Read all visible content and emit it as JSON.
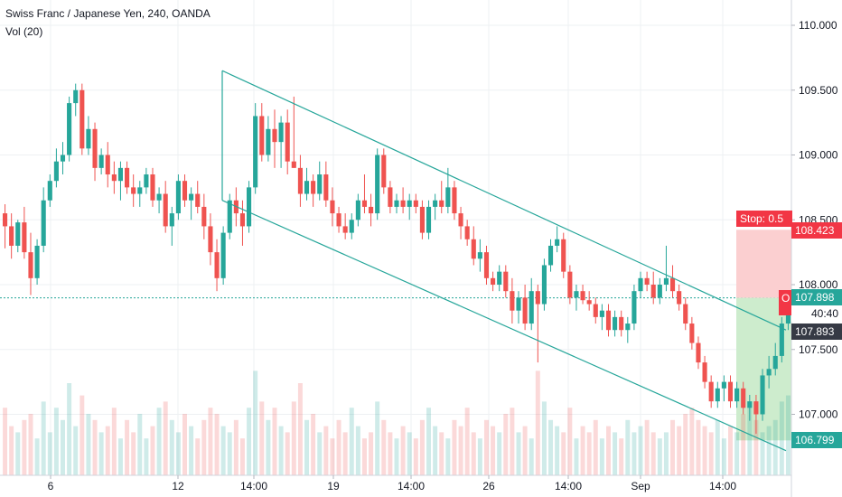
{
  "header": {
    "title": "Swiss Franc / Japanese Yen, 240, OANDA",
    "volume_label": "Vol (20)"
  },
  "price_tags": {
    "stop_label": "Stop: 0.5",
    "stop_price": "108.423",
    "current_price": "107.898",
    "countdown": "40:40",
    "prev_price": "107.893",
    "target_price": "106.799",
    "partial_label": "O"
  },
  "colors": {
    "up": "#26a69a",
    "down": "#ef5350",
    "channel": "#26a69a",
    "price_line": "#26a69a",
    "stop_zone": "#fbcfd0",
    "target_zone": "#cdeccd",
    "stop_tag": "#f23645",
    "target_tag": "#26a69a",
    "axis_text": "#131722"
  },
  "chart_data": {
    "type": "candlestick",
    "symbol": "CHFJPY",
    "ylim": [
      106.6,
      110.25
    ],
    "y_ticks": [
      "110.000",
      "109.500",
      "109.000",
      "108.500",
      "108.000",
      "107.500",
      "107.000"
    ],
    "y_tick_values": [
      110.0,
      109.5,
      109.0,
      108.5,
      108.0,
      107.5,
      107.0
    ],
    "x_ticks": [
      "6",
      "12",
      "14:00",
      "19",
      "14:00",
      "26",
      "14:00",
      "Sep",
      "14:00"
    ],
    "channel": {
      "upper": [
        [
          0,
          109.65
        ],
        [
          1,
          107.65
        ]
      ],
      "lower": [
        [
          0,
          108.65
        ],
        [
          1,
          106.72
        ]
      ]
    },
    "position": {
      "entry": 107.898,
      "stop": 108.423,
      "target": 106.799
    },
    "candles": [
      [
        108.55,
        108.62,
        108.28,
        108.45
      ],
      [
        108.45,
        108.55,
        108.2,
        108.3
      ],
      [
        108.3,
        108.5,
        108.25,
        108.48
      ],
      [
        108.48,
        108.6,
        108.2,
        108.25
      ],
      [
        108.25,
        108.4,
        107.92,
        108.05
      ],
      [
        108.05,
        108.35,
        108.0,
        108.3
      ],
      [
        108.3,
        108.75,
        108.25,
        108.65
      ],
      [
        108.65,
        108.85,
        108.6,
        108.8
      ],
      [
        108.8,
        109.05,
        108.75,
        108.95
      ],
      [
        108.95,
        109.1,
        108.85,
        109.0
      ],
      [
        109.0,
        109.45,
        108.95,
        109.4
      ],
      [
        109.4,
        109.55,
        109.3,
        109.5
      ],
      [
        109.5,
        109.55,
        109.0,
        109.05
      ],
      [
        109.05,
        109.3,
        109.0,
        109.2
      ],
      [
        109.2,
        109.25,
        108.8,
        108.9
      ],
      [
        108.9,
        109.05,
        108.85,
        109.0
      ],
      [
        109.0,
        109.1,
        108.75,
        108.85
      ],
      [
        108.85,
        108.95,
        108.7,
        108.8
      ],
      [
        108.8,
        108.95,
        108.65,
        108.9
      ],
      [
        108.9,
        108.95,
        108.7,
        108.75
      ],
      [
        108.75,
        108.85,
        108.6,
        108.7
      ],
      [
        108.7,
        108.8,
        108.6,
        108.75
      ],
      [
        108.75,
        108.9,
        108.7,
        108.85
      ],
      [
        108.85,
        108.9,
        108.6,
        108.65
      ],
      [
        108.65,
        108.75,
        108.55,
        108.7
      ],
      [
        108.7,
        108.8,
        108.4,
        108.45
      ],
      [
        108.45,
        108.6,
        108.3,
        108.55
      ],
      [
        108.55,
        108.85,
        108.5,
        108.8
      ],
      [
        108.8,
        108.85,
        108.6,
        108.65
      ],
      [
        108.65,
        108.75,
        108.5,
        108.7
      ],
      [
        108.7,
        108.8,
        108.55,
        108.6
      ],
      [
        108.6,
        108.7,
        108.35,
        108.45
      ],
      [
        108.45,
        108.55,
        108.15,
        108.25
      ],
      [
        108.25,
        108.35,
        107.95,
        108.05
      ],
      [
        108.05,
        108.45,
        108.0,
        108.4
      ],
      [
        108.4,
        108.7,
        108.35,
        108.65
      ],
      [
        108.65,
        108.75,
        108.45,
        108.55
      ],
      [
        108.55,
        108.65,
        108.3,
        108.45
      ],
      [
        108.45,
        108.8,
        108.4,
        108.75
      ],
      [
        108.75,
        109.4,
        108.7,
        109.3
      ],
      [
        109.3,
        109.4,
        108.95,
        109.0
      ],
      [
        109.0,
        109.3,
        108.95,
        109.2
      ],
      [
        109.2,
        109.35,
        108.9,
        109.1
      ],
      [
        109.1,
        109.3,
        108.9,
        109.25
      ],
      [
        109.25,
        109.35,
        108.85,
        108.95
      ],
      [
        108.95,
        109.45,
        108.9,
        108.9
      ],
      [
        108.9,
        109.0,
        108.6,
        108.7
      ],
      [
        108.7,
        108.9,
        108.65,
        108.8
      ],
      [
        108.8,
        108.85,
        108.6,
        108.7
      ],
      [
        108.7,
        108.95,
        108.65,
        108.85
      ],
      [
        108.85,
        108.95,
        108.6,
        108.65
      ],
      [
        108.65,
        108.75,
        108.45,
        108.55
      ],
      [
        108.55,
        108.6,
        108.4,
        108.45
      ],
      [
        108.45,
        108.55,
        108.35,
        108.4
      ],
      [
        108.4,
        108.55,
        108.35,
        108.5
      ],
      [
        108.5,
        108.7,
        108.45,
        108.65
      ],
      [
        108.65,
        108.85,
        108.55,
        108.6
      ],
      [
        108.6,
        108.7,
        108.45,
        108.55
      ],
      [
        108.55,
        109.05,
        108.5,
        109.0
      ],
      [
        109.0,
        109.05,
        108.7,
        108.75
      ],
      [
        108.75,
        108.8,
        108.55,
        108.6
      ],
      [
        108.6,
        108.7,
        108.55,
        108.65
      ],
      [
        108.65,
        108.75,
        108.55,
        108.6
      ],
      [
        108.6,
        108.7,
        108.5,
        108.65
      ],
      [
        108.65,
        108.7,
        108.55,
        108.6
      ],
      [
        108.6,
        108.65,
        108.35,
        108.4
      ],
      [
        108.4,
        108.65,
        108.35,
        108.6
      ],
      [
        108.6,
        108.7,
        108.5,
        108.65
      ],
      [
        108.65,
        108.8,
        108.55,
        108.6
      ],
      [
        108.6,
        108.9,
        108.55,
        108.75
      ],
      [
        108.75,
        108.8,
        108.5,
        108.55
      ],
      [
        108.55,
        108.6,
        108.35,
        108.45
      ],
      [
        108.45,
        108.5,
        108.3,
        108.35
      ],
      [
        108.35,
        108.45,
        108.15,
        108.2
      ],
      [
        108.2,
        108.35,
        108.1,
        108.25
      ],
      [
        108.25,
        108.3,
        108.0,
        108.05
      ],
      [
        108.05,
        108.1,
        107.95,
        108.0
      ],
      [
        108.0,
        108.15,
        107.95,
        108.1
      ],
      [
        108.1,
        108.15,
        107.9,
        107.95
      ],
      [
        107.95,
        108.05,
        107.7,
        107.8
      ],
      [
        107.8,
        107.95,
        107.7,
        107.9
      ],
      [
        107.9,
        108.0,
        107.65,
        107.7
      ],
      [
        107.7,
        108.05,
        107.65,
        107.95
      ],
      [
        107.95,
        108.0,
        107.4,
        107.85
      ],
      [
        107.85,
        108.2,
        107.8,
        108.15
      ],
      [
        108.15,
        108.35,
        108.1,
        108.3
      ],
      [
        108.3,
        108.45,
        108.25,
        108.35
      ],
      [
        108.35,
        108.4,
        108.05,
        108.1
      ],
      [
        108.1,
        108.15,
        107.85,
        107.9
      ],
      [
        107.9,
        108.0,
        107.8,
        107.95
      ],
      [
        107.95,
        108.0,
        107.85,
        107.88
      ],
      [
        107.88,
        107.95,
        107.8,
        107.85
      ],
      [
        107.85,
        107.9,
        107.7,
        107.75
      ],
      [
        107.75,
        107.85,
        107.65,
        107.8
      ],
      [
        107.8,
        107.85,
        107.6,
        107.65
      ],
      [
        107.65,
        107.8,
        107.6,
        107.75
      ],
      [
        107.75,
        107.8,
        107.6,
        107.65
      ],
      [
        107.65,
        107.75,
        107.55,
        107.7
      ],
      [
        107.7,
        108.0,
        107.65,
        107.95
      ],
      [
        107.95,
        108.1,
        107.9,
        108.05
      ],
      [
        108.05,
        108.1,
        107.95,
        108.0
      ],
      [
        108.0,
        108.1,
        107.85,
        107.9
      ],
      [
        107.9,
        108.05,
        107.85,
        108.0
      ],
      [
        108.0,
        108.3,
        107.95,
        108.05
      ],
      [
        108.05,
        108.15,
        107.9,
        107.95
      ],
      [
        107.95,
        108.0,
        107.8,
        107.85
      ],
      [
        107.85,
        107.9,
        107.65,
        107.7
      ],
      [
        107.7,
        107.75,
        107.5,
        107.55
      ],
      [
        107.55,
        107.6,
        107.35,
        107.4
      ],
      [
        107.4,
        107.45,
        107.2,
        107.25
      ],
      [
        107.25,
        107.3,
        107.05,
        107.1
      ],
      [
        107.1,
        107.25,
        107.05,
        107.2
      ],
      [
        107.2,
        107.3,
        107.1,
        107.25
      ],
      [
        107.25,
        107.3,
        107.05,
        107.1
      ],
      [
        107.1,
        107.25,
        107.05,
        107.2
      ],
      [
        107.2,
        107.25,
        107.0,
        107.05
      ],
      [
        107.05,
        107.15,
        106.95,
        107.1
      ],
      [
        107.1,
        107.15,
        106.85,
        107.0
      ],
      [
        107.0,
        107.35,
        106.95,
        107.3
      ],
      [
        107.3,
        107.45,
        107.2,
        107.35
      ],
      [
        107.35,
        107.55,
        107.3,
        107.45
      ],
      [
        107.45,
        107.75,
        107.4,
        107.7
      ],
      [
        107.7,
        107.9,
        107.65,
        107.9
      ]
    ],
    "volumes": [
      0.55,
      0.4,
      0.35,
      0.45,
      0.5,
      0.3,
      0.6,
      0.35,
      0.55,
      0.45,
      0.75,
      0.4,
      0.65,
      0.5,
      0.45,
      0.35,
      0.4,
      0.55,
      0.3,
      0.45,
      0.35,
      0.5,
      0.3,
      0.4,
      0.55,
      0.6,
      0.45,
      0.35,
      0.5,
      0.4,
      0.3,
      0.45,
      0.55,
      0.5,
      0.4,
      0.35,
      0.45,
      0.3,
      0.55,
      0.85,
      0.6,
      0.45,
      0.55,
      0.4,
      0.35,
      0.6,
      0.75,
      0.45,
      0.5,
      0.35,
      0.4,
      0.3,
      0.45,
      0.35,
      0.55,
      0.4,
      0.3,
      0.35,
      0.6,
      0.45,
      0.35,
      0.3,
      0.4,
      0.35,
      0.3,
      0.45,
      0.55,
      0.4,
      0.35,
      0.3,
      0.45,
      0.4,
      0.55,
      0.35,
      0.3,
      0.45,
      0.4,
      0.35,
      0.5,
      0.55,
      0.35,
      0.4,
      0.3,
      0.85,
      0.6,
      0.45,
      0.4,
      0.35,
      0.55,
      0.3,
      0.4,
      0.35,
      0.45,
      0.3,
      0.4,
      0.35,
      0.3,
      0.45,
      0.35,
      0.4,
      0.45,
      0.35,
      0.3,
      0.35,
      0.45,
      0.4,
      0.5,
      0.55,
      0.45,
      0.4,
      0.35,
      0.45,
      0.3,
      0.4,
      0.35,
      0.5,
      0.6,
      0.45,
      0.35,
      0.4,
      0.45,
      0.6,
      0.65
    ]
  }
}
